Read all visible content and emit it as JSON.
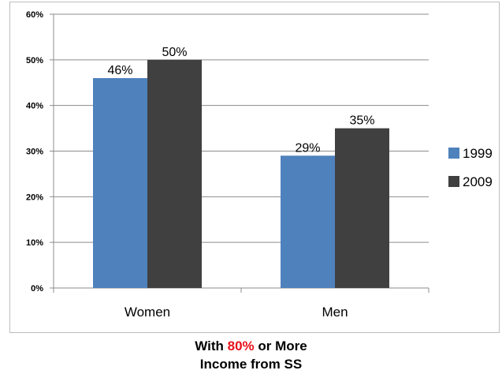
{
  "chart_data": {
    "type": "bar",
    "categories": [
      "Women",
      "Men"
    ],
    "series": [
      {
        "name": "1999",
        "values": [
          46,
          29
        ],
        "labels": [
          "46%",
          "29%"
        ],
        "color": "#4f81bd"
      },
      {
        "name": "2009",
        "values": [
          50,
          35
        ],
        "labels": [
          "50%",
          "35%"
        ],
        "color": "#404040"
      }
    ],
    "ylim": [
      0,
      60
    ],
    "yticks": [
      "0%",
      "10%",
      "20%",
      "30%",
      "40%",
      "50%",
      "60%"
    ],
    "grid": true,
    "legend": "right",
    "xlabel": "",
    "ylabel": ""
  },
  "caption": {
    "line1_before": "With ",
    "line1_highlight": "80%",
    "line1_after": " or More",
    "line2": "Income from SS",
    "highlight_color": "#e8101a"
  }
}
